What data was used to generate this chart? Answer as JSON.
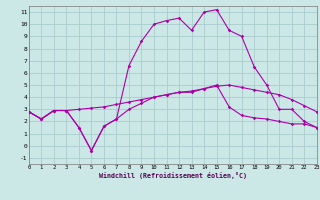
{
  "xlabel": "Windchill (Refroidissement éolien,°C)",
  "background_color": "#cce8e6",
  "grid_color": "#aacccc",
  "line_color": "#aa00aa",
  "xlim": [
    0,
    23
  ],
  "ylim": [
    -1.5,
    11.5
  ],
  "xticks": [
    0,
    1,
    2,
    3,
    4,
    5,
    6,
    7,
    8,
    9,
    10,
    11,
    12,
    13,
    14,
    15,
    16,
    17,
    18,
    19,
    20,
    21,
    22,
    23
  ],
  "yticks": [
    -1,
    0,
    1,
    2,
    3,
    4,
    5,
    6,
    7,
    8,
    9,
    10,
    11
  ],
  "series1_x": [
    0,
    1,
    2,
    3,
    4,
    5,
    6,
    7,
    8,
    9,
    10,
    11,
    12,
    13,
    14,
    15,
    16,
    17,
    18,
    19,
    20,
    21,
    22,
    23
  ],
  "series1_y": [
    2.8,
    2.2,
    2.9,
    2.9,
    1.5,
    -0.4,
    1.6,
    2.2,
    6.6,
    8.6,
    10.0,
    10.3,
    10.5,
    9.5,
    11.0,
    11.2,
    9.5,
    9.0,
    6.5,
    5.0,
    3.0,
    3.0,
    2.0,
    1.5
  ],
  "series2_x": [
    0,
    1,
    2,
    3,
    4,
    5,
    6,
    7,
    8,
    9,
    10,
    11,
    12,
    13,
    14,
    15,
    16,
    17,
    18,
    19,
    20,
    21,
    22,
    23
  ],
  "series2_y": [
    2.8,
    2.2,
    2.9,
    2.9,
    3.0,
    3.1,
    3.2,
    3.4,
    3.6,
    3.8,
    4.0,
    4.2,
    4.4,
    4.5,
    4.7,
    4.9,
    5.0,
    4.8,
    4.6,
    4.4,
    4.2,
    3.8,
    3.3,
    2.8
  ],
  "series3_x": [
    0,
    1,
    2,
    3,
    4,
    5,
    6,
    7,
    8,
    9,
    10,
    11,
    12,
    13,
    14,
    15,
    16,
    17,
    18,
    19,
    20,
    21,
    22,
    23
  ],
  "series3_y": [
    2.8,
    2.2,
    2.9,
    2.9,
    1.5,
    -0.4,
    1.6,
    2.2,
    3.0,
    3.5,
    4.0,
    4.2,
    4.4,
    4.4,
    4.7,
    5.0,
    3.2,
    2.5,
    2.3,
    2.2,
    2.0,
    1.8,
    1.8,
    1.5
  ]
}
